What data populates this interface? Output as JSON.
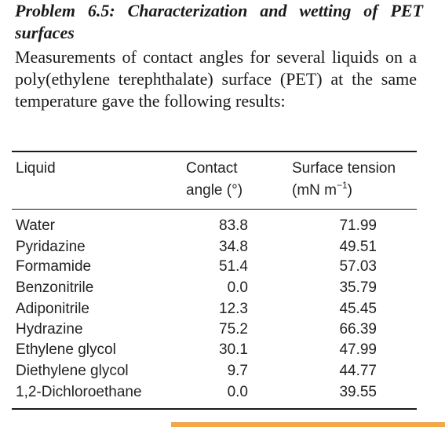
{
  "problem": {
    "title": "Problem 6.5: Characterization and wetting of PET surfaces",
    "intro": "Measurements of contact angles for several liquids on a poly(ethylene terephthalate) surface (PET) at the same temperature gave the following results:"
  },
  "table": {
    "headers": {
      "liquid": "Liquid",
      "angle_line1": "Contact",
      "angle_line2": "angle (°)",
      "tension_line1": "Surface tension",
      "tension_unit_prefix": "(mN m",
      "tension_unit_exp": "−1",
      "tension_unit_suffix": ")"
    },
    "rows": [
      {
        "liquid": "Water",
        "angle": "83.8",
        "tension": "71.99"
      },
      {
        "liquid": "Pyridazine",
        "angle": "34.8",
        "tension": "49.51"
      },
      {
        "liquid": "Formamide",
        "angle": "51.4",
        "tension": "57.03"
      },
      {
        "liquid": "Benzonitrile",
        "angle": "0.0",
        "tension": "35.79"
      },
      {
        "liquid": "Adiponitrile",
        "angle": "12.3",
        "tension": "45.45"
      },
      {
        "liquid": "Hydrazine",
        "angle": "75.2",
        "tension": "66.39"
      },
      {
        "liquid": "Ethylene glycol",
        "angle": "30.1",
        "tension": "47.99"
      },
      {
        "liquid": "Diethylene glycol",
        "angle": "9.7",
        "tension": "44.77"
      },
      {
        "liquid": "1,2-Dichloroethane",
        "angle": "0.0",
        "tension": "39.55"
      }
    ]
  },
  "colors": {
    "accent_bar": "#f5a742"
  }
}
